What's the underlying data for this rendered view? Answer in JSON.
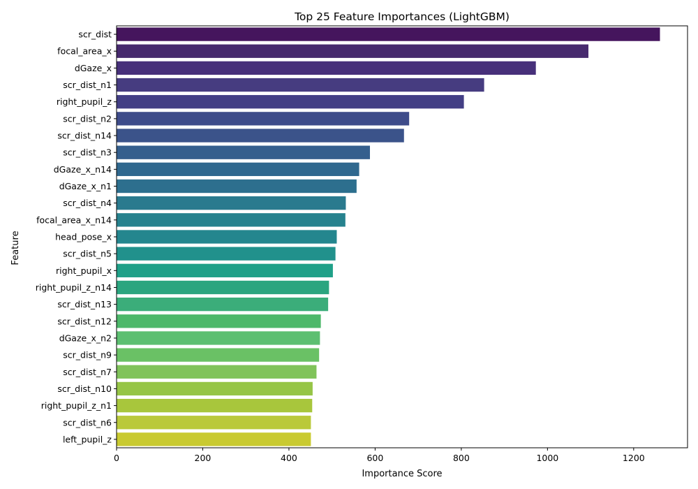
{
  "chart_data": {
    "type": "bar",
    "orientation": "horizontal",
    "title": "Top 25 Feature Importances (LightGBM)",
    "xlabel": "Importance Score",
    "ylabel": "Feature",
    "xlim": [
      0,
      1325
    ],
    "xticks": [
      0,
      200,
      400,
      600,
      800,
      1000,
      1200
    ],
    "grid": false,
    "colormap": "viridis",
    "categories": [
      "scr_dist",
      "focal_area_x",
      "dGaze_x",
      "scr_dist_n1",
      "right_pupil_z",
      "scr_dist_n2",
      "scr_dist_n14",
      "scr_dist_n3",
      "dGaze_x_n14",
      "dGaze_x_n1",
      "scr_dist_n4",
      "focal_area_x_n14",
      "head_pose_x",
      "scr_dist_n5",
      "right_pupil_x",
      "right_pupil_z_n14",
      "scr_dist_n13",
      "scr_dist_n12",
      "dGaze_x_n2",
      "scr_dist_n9",
      "scr_dist_n7",
      "scr_dist_n10",
      "right_pupil_z_n1",
      "scr_dist_n6",
      "left_pupil_z"
    ],
    "values": [
      1261,
      1095,
      973,
      853,
      806,
      679,
      667,
      588,
      563,
      557,
      532,
      531,
      511,
      508,
      502,
      493,
      491,
      474,
      472,
      470,
      464,
      455,
      454,
      451,
      451
    ],
    "colors": [
      "#45155d",
      "#472a6e",
      "#47307a",
      "#463c80",
      "#433f85",
      "#3e4c8a",
      "#3b538a",
      "#355f8d",
      "#30688e",
      "#2d6f8e",
      "#2a7a8e",
      "#26828e",
      "#24868e",
      "#21918c",
      "#1fa088",
      "#2ba57f",
      "#3bad7a",
      "#4db86a",
      "#5dbf71",
      "#6ac165",
      "#80c35a",
      "#96c546",
      "#a8c63c",
      "#bac93a",
      "#c9ca30"
    ]
  }
}
